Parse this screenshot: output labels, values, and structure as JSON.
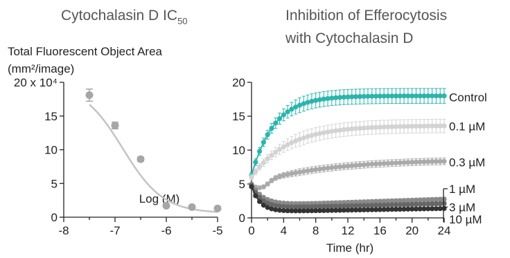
{
  "chart_data": [
    {
      "type": "scatter",
      "title": "Cytochalasin D IC",
      "title_sub": "50",
      "ylabel_line1": "Total Fluorescent Object Area",
      "ylabel_line2": "(mm²/image)",
      "xlabel": "Log (M)",
      "xlim": [
        -8,
        -5
      ],
      "ylim": [
        0,
        20
      ],
      "yticks": [
        "0",
        "5",
        "10",
        "15",
        "20 x 10⁴"
      ],
      "xticks": [
        "-8",
        "-7",
        "-6",
        "-5"
      ],
      "points": [
        {
          "x": -7.5,
          "y": 18.1,
          "err": 0.9
        },
        {
          "x": -7.0,
          "y": 13.6,
          "err": 0.5
        },
        {
          "x": -6.5,
          "y": 8.6,
          "err": 0.3
        },
        {
          "x": -6.0,
          "y": 1.7,
          "err": 0.2
        },
        {
          "x": -5.5,
          "y": 1.5,
          "err": 0.2
        },
        {
          "x": -5.0,
          "y": 1.3,
          "err": 0.2
        }
      ],
      "fit": {
        "top": 19.8,
        "bottom": 0.6,
        "logIC50": -6.85,
        "hill": 1.1
      },
      "colors": {
        "point": "#a6a6a6",
        "fit": "#c4c4c4"
      }
    },
    {
      "type": "line",
      "title_line1": "Inhibition of Efferocytosis",
      "title_line2": "with Cytochalasin D",
      "xlabel": "Time (hr)",
      "xlim": [
        0,
        24
      ],
      "ylim": [
        0,
        20
      ],
      "xticks": [
        "0",
        "4",
        "8",
        "12",
        "16",
        "20",
        "24"
      ],
      "yticks": [
        "0",
        "5",
        "10",
        "15",
        "20"
      ],
      "series": [
        {
          "name": "Control",
          "color": "#2ab5ac",
          "start": 6.3,
          "end": 18.0,
          "tau": 2.8,
          "err": 1.1,
          "labelY": 17.8
        },
        {
          "name": "0.1 µM",
          "color": "#d3d3d3",
          "start": 6.0,
          "end": 13.6,
          "tau": 4.5,
          "err": 1.0,
          "labelY": 13.5
        },
        {
          "name": "0.3 µM",
          "color": "#aaaaaa",
          "start": 5.0,
          "end": 8.6,
          "tau": 9.0,
          "dip": 1.0,
          "err": 0.5,
          "labelY": 8.2
        },
        {
          "name": "1 µM",
          "color": "#8a8a8a",
          "start": 5.0,
          "end": 1.8,
          "tau": 1.5,
          "rise": 0.04,
          "err": 0.3,
          "labelY": 4.3
        },
        {
          "name": "3 µM",
          "color": "#666666",
          "start": 4.8,
          "end": 1.4,
          "tau": 1.3,
          "rise": 0.03,
          "err": 0.3,
          "labelY": 1.6
        },
        {
          "name": "10 µM",
          "color": "#333333",
          "start": 4.6,
          "end": 0.9,
          "tau": 1.1,
          "rise": 0.02,
          "err": 0.2,
          "labelY": -0.2
        }
      ]
    }
  ]
}
